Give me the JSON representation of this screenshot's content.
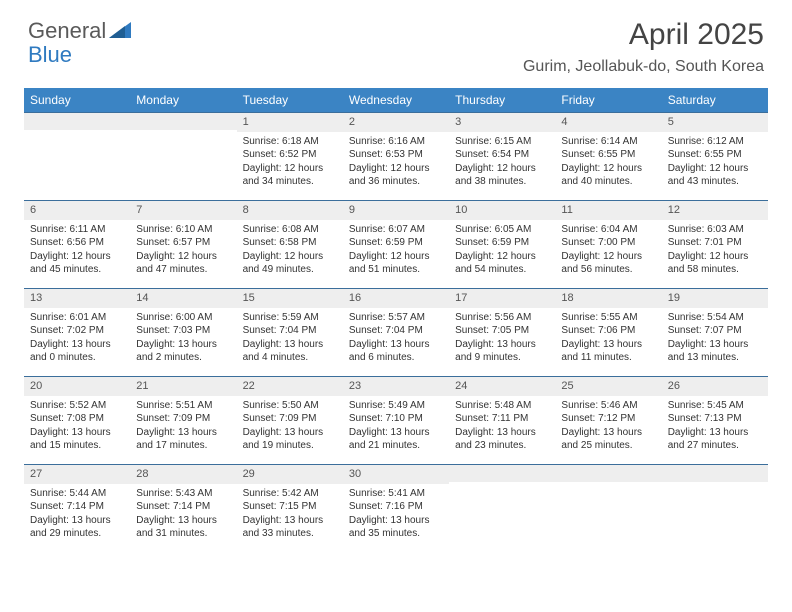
{
  "logo": {
    "general": "General",
    "blue": "Blue"
  },
  "header": {
    "month_title": "April 2025",
    "location": "Gurim, Jeollabuk-do, South Korea"
  },
  "colors": {
    "header_bg": "#3b84c4",
    "header_fg": "#ffffff",
    "cell_border": "#3b6e9b",
    "daynum_bg": "#eeeeee",
    "logo_blue": "#2f7ac0",
    "logo_gray": "#5a5a5a"
  },
  "weekdays": [
    "Sunday",
    "Monday",
    "Tuesday",
    "Wednesday",
    "Thursday",
    "Friday",
    "Saturday"
  ],
  "layout": {
    "first_weekday_index": 2,
    "rows": 5,
    "cols": 7
  },
  "days": [
    {
      "n": 1,
      "sunrise": "6:18 AM",
      "sunset": "6:52 PM",
      "daylight": "12 hours and 34 minutes."
    },
    {
      "n": 2,
      "sunrise": "6:16 AM",
      "sunset": "6:53 PM",
      "daylight": "12 hours and 36 minutes."
    },
    {
      "n": 3,
      "sunrise": "6:15 AM",
      "sunset": "6:54 PM",
      "daylight": "12 hours and 38 minutes."
    },
    {
      "n": 4,
      "sunrise": "6:14 AM",
      "sunset": "6:55 PM",
      "daylight": "12 hours and 40 minutes."
    },
    {
      "n": 5,
      "sunrise": "6:12 AM",
      "sunset": "6:55 PM",
      "daylight": "12 hours and 43 minutes."
    },
    {
      "n": 6,
      "sunrise": "6:11 AM",
      "sunset": "6:56 PM",
      "daylight": "12 hours and 45 minutes."
    },
    {
      "n": 7,
      "sunrise": "6:10 AM",
      "sunset": "6:57 PM",
      "daylight": "12 hours and 47 minutes."
    },
    {
      "n": 8,
      "sunrise": "6:08 AM",
      "sunset": "6:58 PM",
      "daylight": "12 hours and 49 minutes."
    },
    {
      "n": 9,
      "sunrise": "6:07 AM",
      "sunset": "6:59 PM",
      "daylight": "12 hours and 51 minutes."
    },
    {
      "n": 10,
      "sunrise": "6:05 AM",
      "sunset": "6:59 PM",
      "daylight": "12 hours and 54 minutes."
    },
    {
      "n": 11,
      "sunrise": "6:04 AM",
      "sunset": "7:00 PM",
      "daylight": "12 hours and 56 minutes."
    },
    {
      "n": 12,
      "sunrise": "6:03 AM",
      "sunset": "7:01 PM",
      "daylight": "12 hours and 58 minutes."
    },
    {
      "n": 13,
      "sunrise": "6:01 AM",
      "sunset": "7:02 PM",
      "daylight": "13 hours and 0 minutes."
    },
    {
      "n": 14,
      "sunrise": "6:00 AM",
      "sunset": "7:03 PM",
      "daylight": "13 hours and 2 minutes."
    },
    {
      "n": 15,
      "sunrise": "5:59 AM",
      "sunset": "7:04 PM",
      "daylight": "13 hours and 4 minutes."
    },
    {
      "n": 16,
      "sunrise": "5:57 AM",
      "sunset": "7:04 PM",
      "daylight": "13 hours and 6 minutes."
    },
    {
      "n": 17,
      "sunrise": "5:56 AM",
      "sunset": "7:05 PM",
      "daylight": "13 hours and 9 minutes."
    },
    {
      "n": 18,
      "sunrise": "5:55 AM",
      "sunset": "7:06 PM",
      "daylight": "13 hours and 11 minutes."
    },
    {
      "n": 19,
      "sunrise": "5:54 AM",
      "sunset": "7:07 PM",
      "daylight": "13 hours and 13 minutes."
    },
    {
      "n": 20,
      "sunrise": "5:52 AM",
      "sunset": "7:08 PM",
      "daylight": "13 hours and 15 minutes."
    },
    {
      "n": 21,
      "sunrise": "5:51 AM",
      "sunset": "7:09 PM",
      "daylight": "13 hours and 17 minutes."
    },
    {
      "n": 22,
      "sunrise": "5:50 AM",
      "sunset": "7:09 PM",
      "daylight": "13 hours and 19 minutes."
    },
    {
      "n": 23,
      "sunrise": "5:49 AM",
      "sunset": "7:10 PM",
      "daylight": "13 hours and 21 minutes."
    },
    {
      "n": 24,
      "sunrise": "5:48 AM",
      "sunset": "7:11 PM",
      "daylight": "13 hours and 23 minutes."
    },
    {
      "n": 25,
      "sunrise": "5:46 AM",
      "sunset": "7:12 PM",
      "daylight": "13 hours and 25 minutes."
    },
    {
      "n": 26,
      "sunrise": "5:45 AM",
      "sunset": "7:13 PM",
      "daylight": "13 hours and 27 minutes."
    },
    {
      "n": 27,
      "sunrise": "5:44 AM",
      "sunset": "7:14 PM",
      "daylight": "13 hours and 29 minutes."
    },
    {
      "n": 28,
      "sunrise": "5:43 AM",
      "sunset": "7:14 PM",
      "daylight": "13 hours and 31 minutes."
    },
    {
      "n": 29,
      "sunrise": "5:42 AM",
      "sunset": "7:15 PM",
      "daylight": "13 hours and 33 minutes."
    },
    {
      "n": 30,
      "sunrise": "5:41 AM",
      "sunset": "7:16 PM",
      "daylight": "13 hours and 35 minutes."
    }
  ],
  "labels": {
    "sunrise": "Sunrise:",
    "sunset": "Sunset:",
    "daylight": "Daylight:"
  }
}
